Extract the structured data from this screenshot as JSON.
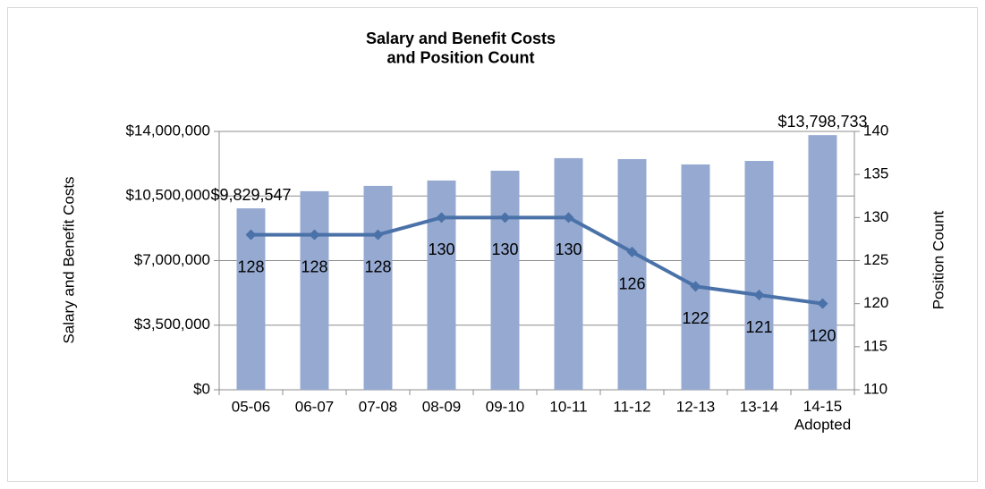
{
  "chart_data": {
    "type": "bar_line",
    "title": "Salary and Benefit Costs\nand Position Count",
    "y_label": "Salary and Benefit Costs",
    "y2_label": "Position Count",
    "categories": [
      "05-06",
      "06-07",
      "07-08",
      "08-09",
      "09-10",
      "10-11",
      "11-12",
      "12-13",
      "13-14",
      "14-15\nAdopted"
    ],
    "series": [
      {
        "name": "Salary and Benefit Costs",
        "type": "bar",
        "color": "#95a9d1",
        "values": [
          9829547,
          10760000,
          11050000,
          11340000,
          11870000,
          12550000,
          12500000,
          12210000,
          12400000,
          13798733
        ],
        "value_labels": [
          "$9,829,547",
          null,
          null,
          null,
          null,
          null,
          null,
          null,
          null,
          "$13,798,733"
        ]
      },
      {
        "name": "Position Count",
        "type": "line",
        "axis": "y2",
        "color": "#4a72a8",
        "values": [
          128,
          128,
          128,
          130,
          130,
          130,
          126,
          122,
          121,
          120
        ]
      }
    ],
    "ylim": [
      0,
      14000000
    ],
    "yticks": [
      {
        "value": 0,
        "label": "$0"
      },
      {
        "value": 3500000,
        "label": "$3,500,000"
      },
      {
        "value": 7000000,
        "label": "$7,000,000"
      },
      {
        "value": 10500000,
        "label": "$10,500,000"
      },
      {
        "value": 14000000,
        "label": "$14,000,000"
      }
    ],
    "y2lim": [
      110,
      140
    ],
    "y2ticks": [
      110,
      115,
      120,
      125,
      130,
      135,
      140
    ],
    "grid": true
  }
}
